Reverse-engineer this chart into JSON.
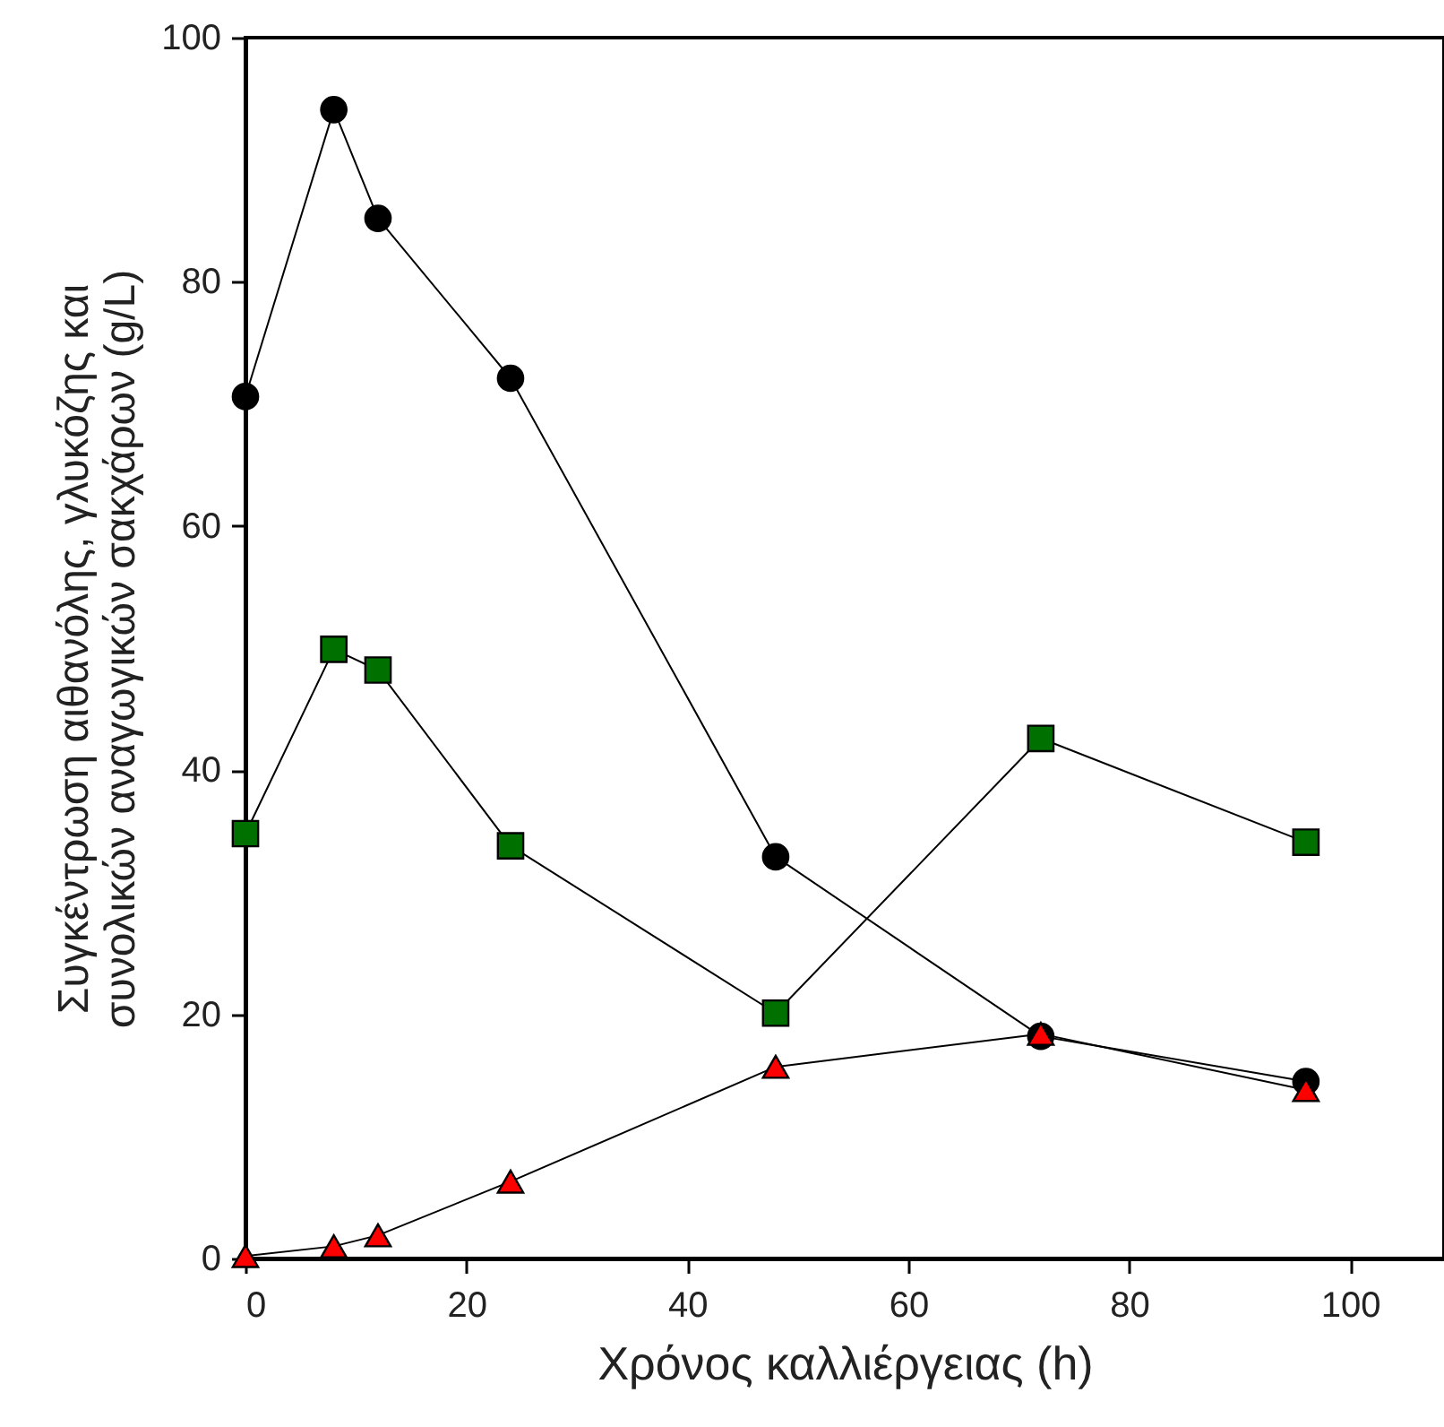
{
  "chart_data": {
    "type": "line",
    "xlabel": "Χρόνος καλλιέργειας (h)",
    "ylabel": "Συγκέντρωση αιθανόλης, γλυκόζης και\nσυνολικών αναγωγικών σακχάρων (g/L)",
    "x": [
      0,
      8,
      12,
      24,
      48,
      72,
      96
    ],
    "series": [
      {
        "color": "#000000",
        "marker": "circle",
        "values": [
          70.6,
          94.1,
          85.2,
          72.1,
          32.9,
          18.2,
          14.5
        ]
      },
      {
        "color": "#007000",
        "marker": "square",
        "values": [
          34.8,
          49.9,
          48.2,
          33.8,
          20.1,
          42.6,
          34.1
        ]
      },
      {
        "color": "#ff0000",
        "marker": "triangle",
        "values": [
          0.2,
          1,
          1.9,
          6.3,
          15.7,
          18.4,
          13.8
        ]
      }
    ],
    "xlim": [
      0,
      108.5
    ],
    "xticks": [
      0,
      20,
      40,
      60,
      80,
      100
    ],
    "ylim": [
      0,
      100
    ],
    "yticks": [
      0,
      20,
      40,
      60,
      80,
      100
    ],
    "grid": false,
    "line_style": "solid"
  }
}
